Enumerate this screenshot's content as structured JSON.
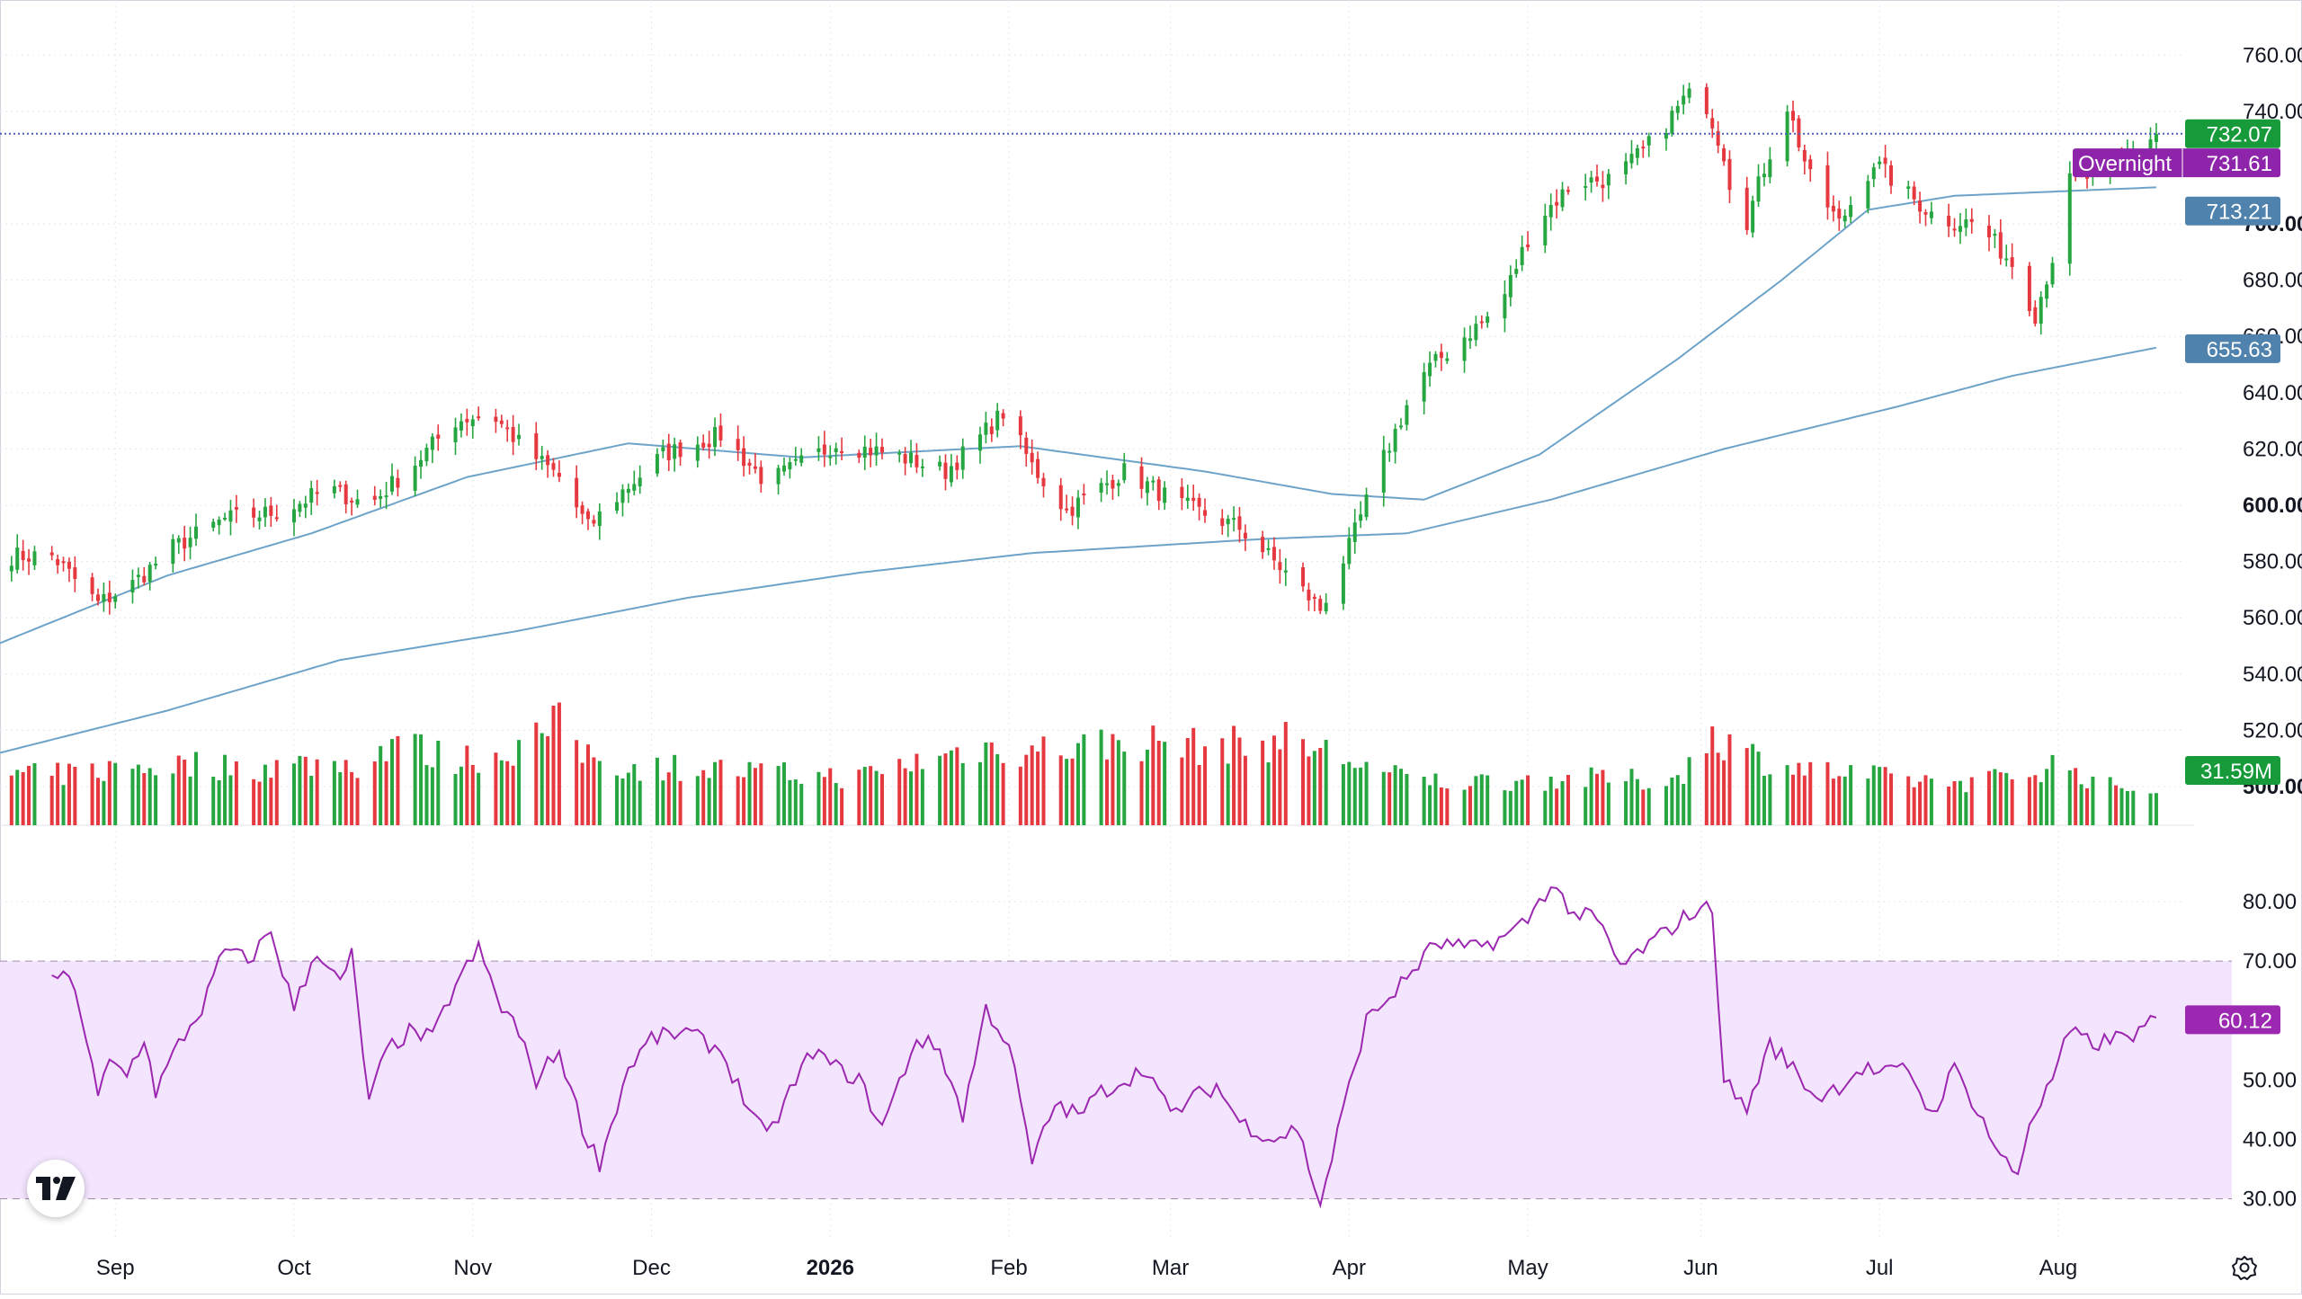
{
  "chart_data": [
    {
      "type": "candlestick",
      "title": "",
      "y_axis_ticks": [
        "760.00",
        "740.00",
        "700.00",
        "680.00",
        "660.00",
        "640.00",
        "620.00",
        "600.00",
        "580.00",
        "560.00",
        "540.00",
        "520.00",
        "500.00"
      ],
      "bold_ticks": [
        "700.00",
        "600.00",
        "500.00"
      ],
      "ylim": [
        492,
        770
      ],
      "x_axis_labels": [
        {
          "label": "Sep",
          "day": 11
        },
        {
          "label": "Oct",
          "day": 42
        },
        {
          "label": "Nov",
          "day": 73
        },
        {
          "label": "Dec",
          "day": 104
        },
        {
          "label": "2026",
          "day": 135,
          "bold": true
        },
        {
          "label": "Feb",
          "day": 166
        },
        {
          "label": "Mar",
          "day": 194
        },
        {
          "label": "Apr",
          "day": 225
        },
        {
          "label": "May",
          "day": 256
        },
        {
          "label": "Jun",
          "day": 286
        },
        {
          "label": "Jul",
          "day": 317
        },
        {
          "label": "Aug",
          "day": 348
        }
      ],
      "day_range": [
        -9,
        370
      ],
      "close_keypoints": [
        [
          0,
          582
        ],
        [
          8,
          565
        ],
        [
          14,
          572
        ],
        [
          21,
          585
        ],
        [
          30,
          595
        ],
        [
          40,
          598
        ],
        [
          48,
          606
        ],
        [
          55,
          600
        ],
        [
          63,
          615
        ],
        [
          70,
          630
        ],
        [
          76,
          633
        ],
        [
          82,
          620
        ],
        [
          88,
          610
        ],
        [
          93,
          592
        ],
        [
          99,
          605
        ],
        [
          106,
          618
        ],
        [
          116,
          625
        ],
        [
          124,
          608
        ],
        [
          131,
          616
        ],
        [
          136,
          622
        ],
        [
          146,
          618
        ],
        [
          155,
          612
        ],
        [
          160,
          622
        ],
        [
          165,
          633
        ],
        [
          170,
          614
        ],
        [
          176,
          598
        ],
        [
          186,
          612
        ],
        [
          196,
          600
        ],
        [
          206,
          592
        ],
        [
          214,
          576
        ],
        [
          220,
          563
        ],
        [
          225,
          585
        ],
        [
          230,
          612
        ],
        [
          237,
          645
        ],
        [
          245,
          660
        ],
        [
          251,
          670
        ],
        [
          257,
          700
        ],
        [
          264,
          715
        ],
        [
          271,
          716
        ],
        [
          278,
          730
        ],
        [
          283,
          744
        ],
        [
          286,
          748
        ],
        [
          290,
          725
        ],
        [
          293,
          695
        ],
        [
          297,
          720
        ],
        [
          301,
          742
        ],
        [
          305,
          716
        ],
        [
          310,
          700
        ],
        [
          316,
          722
        ],
        [
          321,
          712
        ],
        [
          327,
          702
        ],
        [
          334,
          700
        ],
        [
          340,
          686
        ],
        [
          344,
          668
        ],
        [
          347,
          688
        ],
        [
          350,
          715
        ],
        [
          356,
          718
        ],
        [
          362,
          728
        ],
        [
          365,
          732
        ]
      ],
      "last_price": "732.07",
      "series": [
        {
          "name": "Moving average (fast)",
          "color": "#6ea3c9",
          "last": "713.21",
          "keypoints": [
            [
              -9,
              551
            ],
            [
              20,
              575
            ],
            [
              45,
              590
            ],
            [
              72,
              610
            ],
            [
              100,
              622
            ],
            [
              130,
              617
            ],
            [
              168,
              621
            ],
            [
              200,
              612
            ],
            [
              222,
              604
            ],
            [
              238,
              602
            ],
            [
              258,
              618
            ],
            [
              282,
              652
            ],
            [
              300,
              680
            ],
            [
              315,
              705
            ],
            [
              330,
              710
            ],
            [
              365,
              713
            ]
          ]
        },
        {
          "name": "Moving average (slow)",
          "color": "#6ea3c9",
          "last": "655.63",
          "keypoints": [
            [
              -9,
              512
            ],
            [
              20,
              527
            ],
            [
              50,
              545
            ],
            [
              80,
              555
            ],
            [
              110,
              567
            ],
            [
              140,
              576
            ],
            [
              170,
              583
            ],
            [
              210,
              588
            ],
            [
              235,
              590
            ],
            [
              260,
              602
            ],
            [
              290,
              620
            ],
            [
              320,
              635
            ],
            [
              340,
              646
            ],
            [
              365,
              656
            ]
          ]
        }
      ],
      "overnight_label": "Overnight",
      "overnight_price": "731.61",
      "colors": {
        "up": "#26a640",
        "down": "#e5393f",
        "ma": "#6ea3c9",
        "price_line": "#4a5fbf",
        "overnight": "#8e24aa",
        "ma_tag": "#4f83ad",
        "last_tag": "#169a3a"
      }
    },
    {
      "type": "bar",
      "name": "Volume",
      "last": "31.59M",
      "note": "relative volumes in units of the tallest bar",
      "keypoints": [
        [
          0,
          0.28
        ],
        [
          15,
          0.33
        ],
        [
          25,
          0.34
        ],
        [
          35,
          0.32
        ],
        [
          46,
          0.35
        ],
        [
          55,
          0.34
        ],
        [
          60,
          0.52
        ],
        [
          65,
          0.4
        ],
        [
          70,
          0.37
        ],
        [
          78,
          0.4
        ],
        [
          84,
          0.5
        ],
        [
          88,
          0.56
        ],
        [
          92,
          0.42
        ],
        [
          100,
          0.32
        ],
        [
          110,
          0.33
        ],
        [
          120,
          0.3
        ],
        [
          130,
          0.28
        ],
        [
          140,
          0.27
        ],
        [
          148,
          0.34
        ],
        [
          154,
          0.38
        ],
        [
          160,
          0.44
        ],
        [
          170,
          0.42
        ],
        [
          180,
          0.45
        ],
        [
          190,
          0.47
        ],
        [
          200,
          0.44
        ],
        [
          210,
          0.46
        ],
        [
          215,
          0.48
        ],
        [
          220,
          0.42
        ],
        [
          226,
          0.36
        ],
        [
          232,
          0.28
        ],
        [
          242,
          0.24
        ],
        [
          252,
          0.25
        ],
        [
          262,
          0.26
        ],
        [
          272,
          0.26
        ],
        [
          280,
          0.24
        ],
        [
          284,
          0.33
        ],
        [
          288,
          0.52
        ],
        [
          294,
          0.4
        ],
        [
          300,
          0.34
        ],
        [
          310,
          0.29
        ],
        [
          320,
          0.26
        ],
        [
          330,
          0.24
        ],
        [
          340,
          0.27
        ],
        [
          348,
          0.35
        ],
        [
          356,
          0.22
        ],
        [
          365,
          0.21
        ]
      ],
      "ylim": [
        0,
        1
      ]
    },
    {
      "type": "line",
      "name": "RSI",
      "last": "60.12",
      "y_axis_ticks": [
        "80.00",
        "70.00",
        "50.00",
        "40.00",
        "30.00"
      ],
      "ylim": [
        27.5,
        85
      ],
      "band": [
        30,
        70
      ],
      "color": "#9c27b0",
      "band_color": "#f3e5fd",
      "keypoints": [
        [
          0,
          68
        ],
        [
          4,
          66
        ],
        [
          8,
          47
        ],
        [
          10,
          53
        ],
        [
          13,
          51
        ],
        [
          16,
          57
        ],
        [
          18,
          48
        ],
        [
          22,
          56
        ],
        [
          26,
          62
        ],
        [
          30,
          72
        ],
        [
          34,
          70
        ],
        [
          38,
          75
        ],
        [
          42,
          62
        ],
        [
          46,
          72
        ],
        [
          50,
          66
        ],
        [
          52,
          71
        ],
        [
          55,
          46
        ],
        [
          58,
          55
        ],
        [
          62,
          58
        ],
        [
          66,
          57
        ],
        [
          70,
          66
        ],
        [
          74,
          72
        ],
        [
          78,
          62
        ],
        [
          80,
          60
        ],
        [
          84,
          50
        ],
        [
          88,
          55
        ],
        [
          92,
          42
        ],
        [
          95,
          36
        ],
        [
          100,
          52
        ],
        [
          104,
          57
        ],
        [
          110,
          58
        ],
        [
          116,
          55
        ],
        [
          120,
          47
        ],
        [
          124,
          40
        ],
        [
          128,
          48
        ],
        [
          132,
          55
        ],
        [
          136,
          52
        ],
        [
          140,
          50
        ],
        [
          144,
          42
        ],
        [
          150,
          57
        ],
        [
          154,
          55
        ],
        [
          158,
          44
        ],
        [
          162,
          62
        ],
        [
          166,
          56
        ],
        [
          170,
          36
        ],
        [
          174,
          46
        ],
        [
          178,
          44
        ],
        [
          182,
          48
        ],
        [
          186,
          50
        ],
        [
          190,
          52
        ],
        [
          194,
          44
        ],
        [
          198,
          47
        ],
        [
          202,
          49
        ],
        [
          206,
          43
        ],
        [
          212,
          40
        ],
        [
          216,
          42
        ],
        [
          220,
          29
        ],
        [
          224,
          45
        ],
        [
          228,
          60
        ],
        [
          234,
          66
        ],
        [
          240,
          73
        ],
        [
          246,
          72
        ],
        [
          252,
          74
        ],
        [
          256,
          77
        ],
        [
          260,
          83
        ],
        [
          264,
          78
        ],
        [
          268,
          77
        ],
        [
          272,
          69
        ],
        [
          276,
          72
        ],
        [
          280,
          75
        ],
        [
          284,
          78
        ],
        [
          288,
          79
        ],
        [
          290,
          50
        ],
        [
          294,
          45
        ],
        [
          298,
          56
        ],
        [
          302,
          52
        ],
        [
          306,
          47
        ],
        [
          310,
          49
        ],
        [
          314,
          52
        ],
        [
          318,
          51
        ],
        [
          322,
          52
        ],
        [
          326,
          44
        ],
        [
          330,
          52
        ],
        [
          334,
          45
        ],
        [
          338,
          37
        ],
        [
          341,
          34
        ],
        [
          343,
          43
        ],
        [
          346,
          48
        ],
        [
          350,
          58
        ],
        [
          354,
          56
        ],
        [
          358,
          57
        ],
        [
          362,
          58
        ],
        [
          365,
          60
        ]
      ],
      "last_tag_color": "#9c27b0"
    }
  ],
  "ui": {
    "logo_text": "TV",
    "settings_icon": "gear-icon"
  }
}
